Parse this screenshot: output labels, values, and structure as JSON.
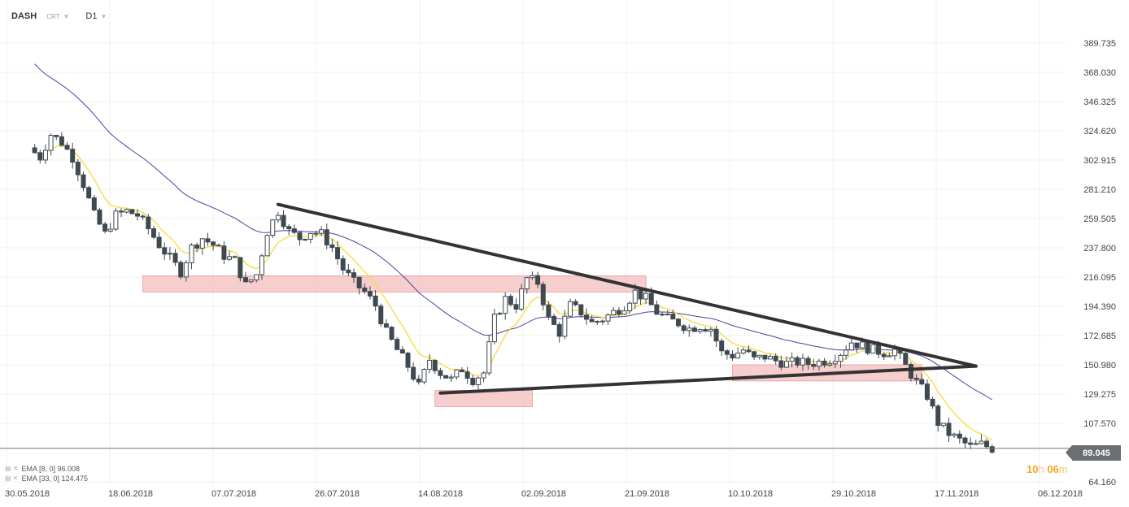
{
  "header": {
    "symbol": "DASH",
    "tag": "CRT",
    "timeframe": "D1"
  },
  "legend": [
    {
      "label": "EMA [8, 0] 96.008"
    },
    {
      "label": "EMA [33, 0] 124.475"
    }
  ],
  "last_price": "89.045",
  "timer": {
    "h": "10",
    "h_unit": "h",
    "m": "06",
    "m_unit": "m"
  },
  "colors": {
    "candle": "#3f4950",
    "ema_fast": "#f4dc3c",
    "ema_slow": "#5a3aa0",
    "zone": "#f3b3b3",
    "trendline": "#333333"
  },
  "chart_data": {
    "type": "candlestick",
    "ylim": [
      64.16,
      389.735
    ],
    "y_ticks": [
      "389.735",
      "368.030",
      "346.325",
      "324.620",
      "302.915",
      "281.210",
      "259.505",
      "237.800",
      "216.095",
      "194.390",
      "172.685",
      "150.980",
      "129.275",
      "107.570",
      "64.160"
    ],
    "x_ticks": [
      "30.05.2018",
      "18.06.2018",
      "07.07.2018",
      "26.07.2018",
      "14.08.2018",
      "02.09.2018",
      "21.09.2018",
      "10.10.2018",
      "29.10.2018",
      "17.11.2018",
      "06.12.2018"
    ],
    "close_path": [
      [
        "2018-05-30",
        312
      ],
      [
        "2018-06-01",
        305
      ],
      [
        "2018-06-03",
        322
      ],
      [
        "2018-06-05",
        316
      ],
      [
        "2018-06-07",
        305
      ],
      [
        "2018-06-09",
        285
      ],
      [
        "2018-06-11",
        262
      ],
      [
        "2018-06-13",
        248
      ],
      [
        "2018-06-15",
        262
      ],
      [
        "2018-06-17",
        265
      ],
      [
        "2018-06-19",
        262
      ],
      [
        "2018-06-21",
        252
      ],
      [
        "2018-06-23",
        240
      ],
      [
        "2018-06-25",
        230
      ],
      [
        "2018-06-27",
        220
      ],
      [
        "2018-06-29",
        238
      ],
      [
        "2018-07-01",
        245
      ],
      [
        "2018-07-03",
        240
      ],
      [
        "2018-07-05",
        232
      ],
      [
        "2018-07-07",
        228
      ],
      [
        "2018-07-09",
        210
      ],
      [
        "2018-07-11",
        218
      ],
      [
        "2018-07-13",
        250
      ],
      [
        "2018-07-15",
        265
      ],
      [
        "2018-07-17",
        250
      ],
      [
        "2018-07-19",
        245
      ],
      [
        "2018-07-21",
        250
      ],
      [
        "2018-07-23",
        248
      ],
      [
        "2018-07-25",
        238
      ],
      [
        "2018-07-27",
        222
      ],
      [
        "2018-07-29",
        212
      ],
      [
        "2018-07-31",
        205
      ],
      [
        "2018-08-02",
        195
      ],
      [
        "2018-08-04",
        175
      ],
      [
        "2018-08-06",
        162
      ],
      [
        "2018-08-08",
        150
      ],
      [
        "2018-08-10",
        135
      ],
      [
        "2018-08-12",
        155
      ],
      [
        "2018-08-14",
        145
      ],
      [
        "2018-08-16",
        140
      ],
      [
        "2018-08-18",
        148
      ],
      [
        "2018-08-20",
        140
      ],
      [
        "2018-08-22",
        145
      ],
      [
        "2018-08-24",
        185
      ],
      [
        "2018-08-26",
        200
      ],
      [
        "2018-08-28",
        195
      ],
      [
        "2018-08-30",
        215
      ],
      [
        "2018-09-01",
        212
      ],
      [
        "2018-09-03",
        185
      ],
      [
        "2018-09-05",
        175
      ],
      [
        "2018-09-07",
        195
      ],
      [
        "2018-09-09",
        190
      ],
      [
        "2018-09-11",
        182
      ],
      [
        "2018-09-13",
        185
      ],
      [
        "2018-09-15",
        190
      ],
      [
        "2018-09-17",
        195
      ],
      [
        "2018-09-19",
        205
      ],
      [
        "2018-09-21",
        200
      ],
      [
        "2018-09-23",
        190
      ],
      [
        "2018-09-25",
        185
      ],
      [
        "2018-09-27",
        182
      ],
      [
        "2018-09-29",
        178
      ],
      [
        "2018-10-01",
        180
      ],
      [
        "2018-10-03",
        178
      ],
      [
        "2018-10-05",
        160
      ],
      [
        "2018-10-07",
        158
      ],
      [
        "2018-10-09",
        162
      ],
      [
        "2018-10-11",
        155
      ],
      [
        "2018-10-13",
        157
      ],
      [
        "2018-10-15",
        154
      ],
      [
        "2018-10-17",
        152
      ],
      [
        "2018-10-19",
        153
      ],
      [
        "2018-10-21",
        152
      ],
      [
        "2018-10-23",
        153
      ],
      [
        "2018-10-25",
        155
      ],
      [
        "2018-10-27",
        160
      ],
      [
        "2018-10-29",
        168
      ],
      [
        "2018-10-31",
        165
      ],
      [
        "2018-11-02",
        162
      ],
      [
        "2018-11-04",
        160
      ],
      [
        "2018-11-06",
        162
      ],
      [
        "2018-11-08",
        150
      ],
      [
        "2018-11-10",
        138
      ],
      [
        "2018-11-12",
        128
      ],
      [
        "2018-11-14",
        108
      ],
      [
        "2018-11-16",
        100
      ],
      [
        "2018-11-18",
        95
      ],
      [
        "2018-11-20",
        90
      ],
      [
        "2018-11-22",
        92
      ],
      [
        "2018-11-24",
        89
      ]
    ],
    "ema_fast_last": 96.008,
    "ema_slow_last": 124.475,
    "trendlines": [
      {
        "from": [
          "2018-07-15",
          270
        ],
        "to": [
          "2018-11-21",
          150
        ]
      },
      {
        "from": [
          "2018-08-14",
          130
        ],
        "to": [
          "2018-11-21",
          150
        ]
      }
    ],
    "zones": [
      {
        "from": "2018-06-20",
        "to": "2018-09-21",
        "y": [
          205,
          217
        ]
      },
      {
        "from": "2018-08-13",
        "to": "2018-08-31",
        "y": [
          120,
          132
        ]
      },
      {
        "from": "2018-10-07",
        "to": "2018-11-11",
        "y": [
          139,
          151
        ]
      }
    ]
  }
}
